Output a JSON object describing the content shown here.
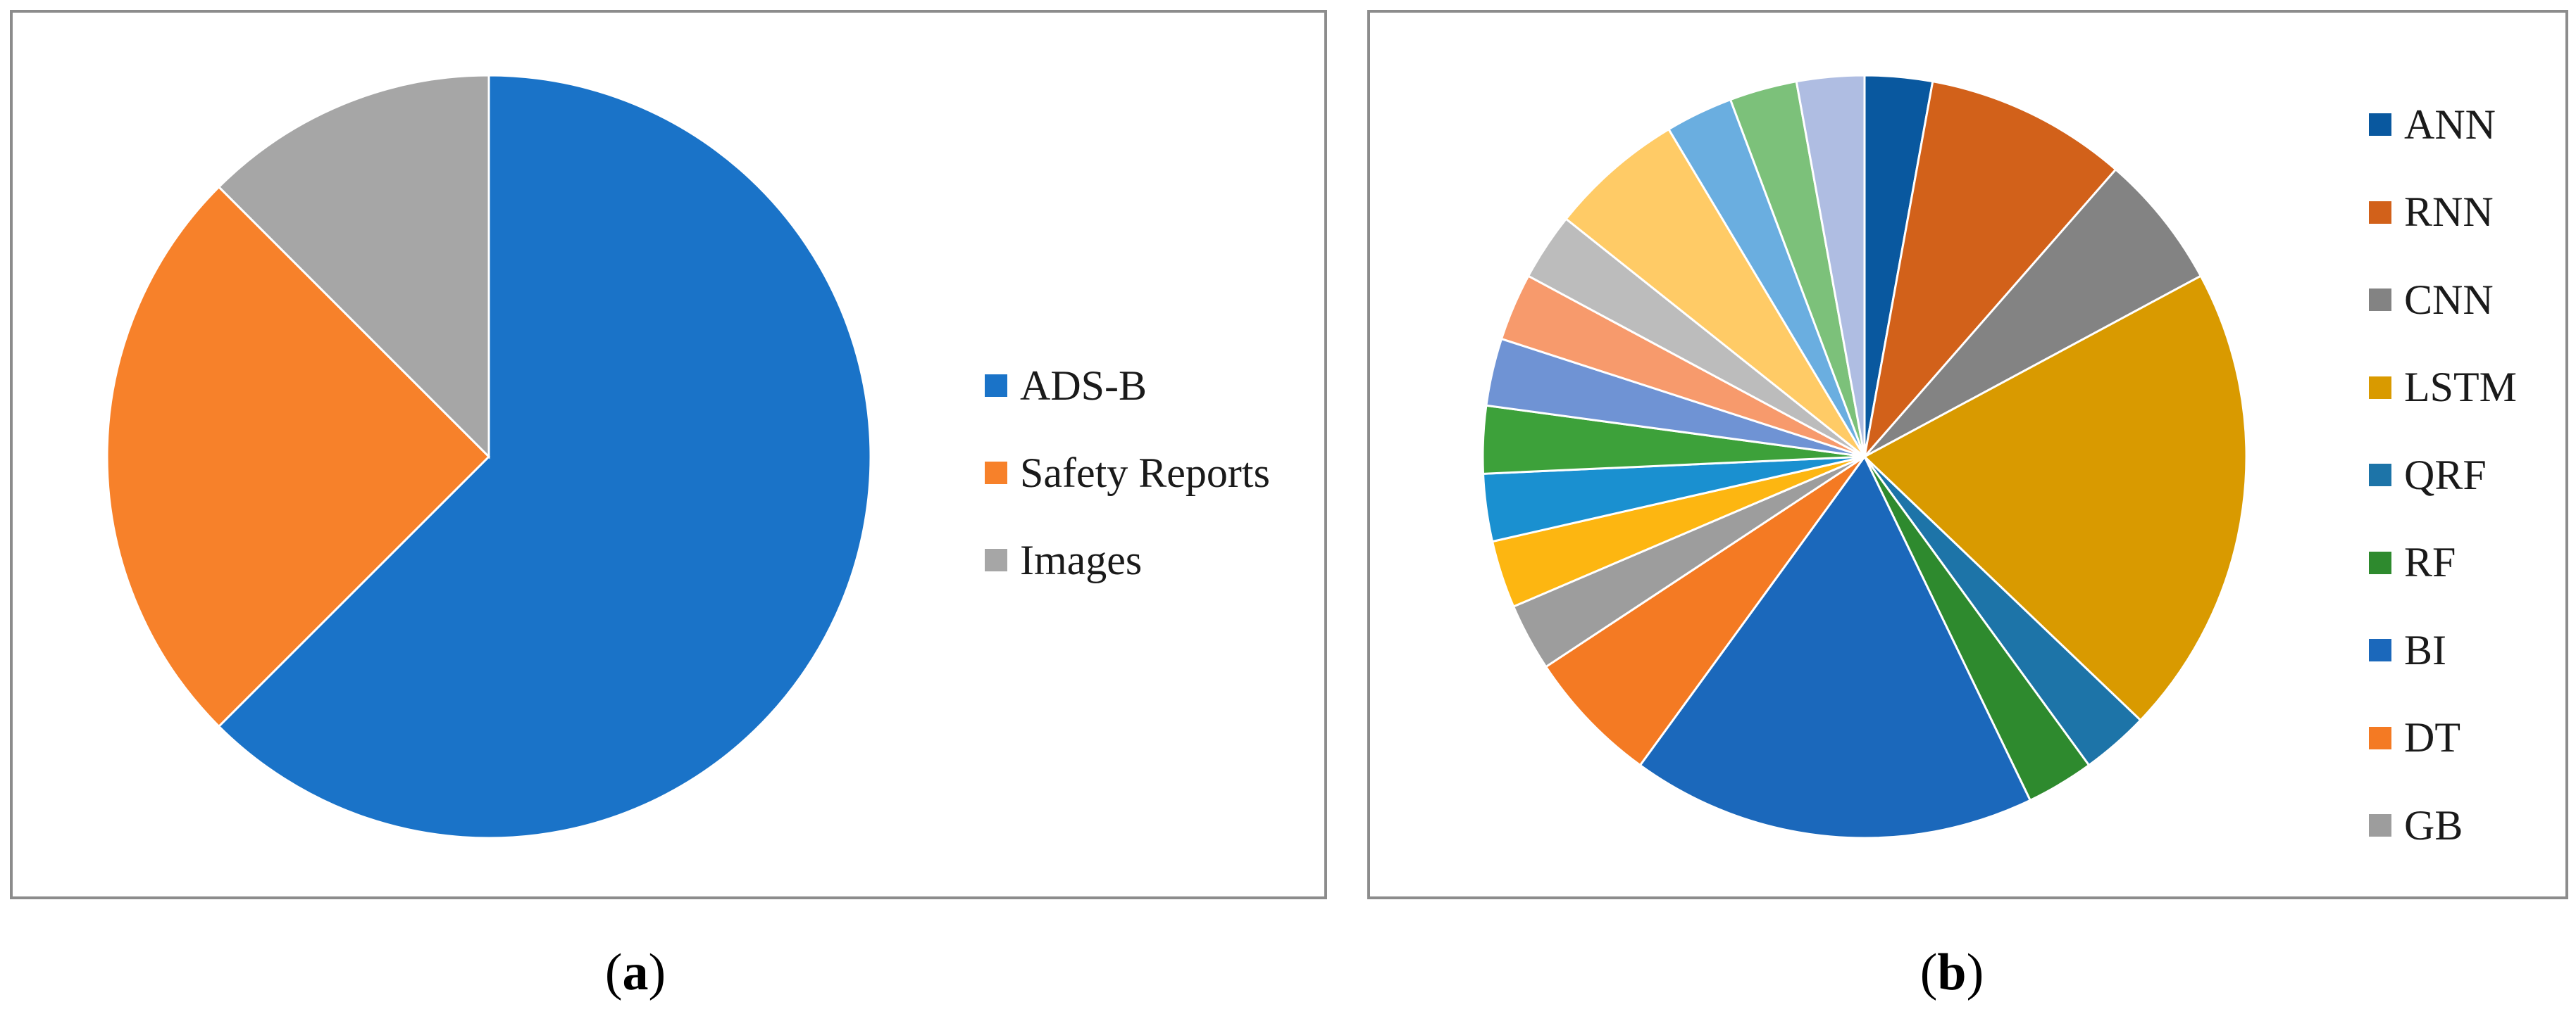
{
  "chart_data": [
    {
      "type": "pie",
      "caption": "a",
      "labels": [
        "ADS-B",
        "Safety Reports",
        "Images"
      ],
      "values": [
        62.5,
        25,
        12.5
      ],
      "colors": [
        "#1a73c8",
        "#f7812a",
        "#a6a6a6"
      ]
    },
    {
      "type": "pie",
      "caption": "b",
      "labels": [
        "ANN",
        "RNN",
        "CNN",
        "LSTM",
        "QRF",
        "RF",
        "BI",
        "DT",
        "GB",
        "",
        "",
        "",
        "",
        "",
        "",
        "",
        "",
        "",
        ""
      ],
      "values": [
        3,
        9,
        6,
        21,
        3,
        3,
        18,
        6,
        3,
        3,
        3,
        3,
        3,
        3,
        3,
        6,
        3,
        3,
        3
      ],
      "colors": [
        "#09589f",
        "#d2611a",
        "#838383",
        "#d99a00",
        "#1d74a8",
        "#2e8a2e",
        "#1b68bb",
        "#f47a23",
        "#9d9d9d",
        "#fdb611",
        "#1a90d0",
        "#3da13a",
        "#6f93d4",
        "#f79a6c",
        "#bcbcbc",
        "#ffcb66",
        "#6aaee0",
        "#7cc17a",
        "#afbde2"
      ]
    }
  ]
}
